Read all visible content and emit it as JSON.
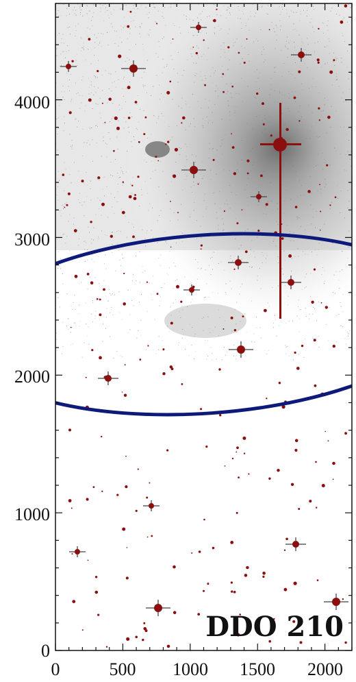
{
  "image": {
    "panel_label": "DDO 210",
    "x_ticks": [
      "0",
      "500",
      "1000",
      "1500",
      "2000"
    ],
    "y_ticks": [
      "0",
      "1000",
      "2000",
      "3000",
      "4000"
    ],
    "x_range": [
      0,
      2200
    ],
    "y_range": [
      0,
      4700
    ],
    "colors": {
      "background": "#ffffff",
      "diffuse_halo": "#8a8a8a",
      "star_marks": "#8b0f0f",
      "ellipse": "#0d1a7a",
      "axes": "#111111"
    }
  }
}
